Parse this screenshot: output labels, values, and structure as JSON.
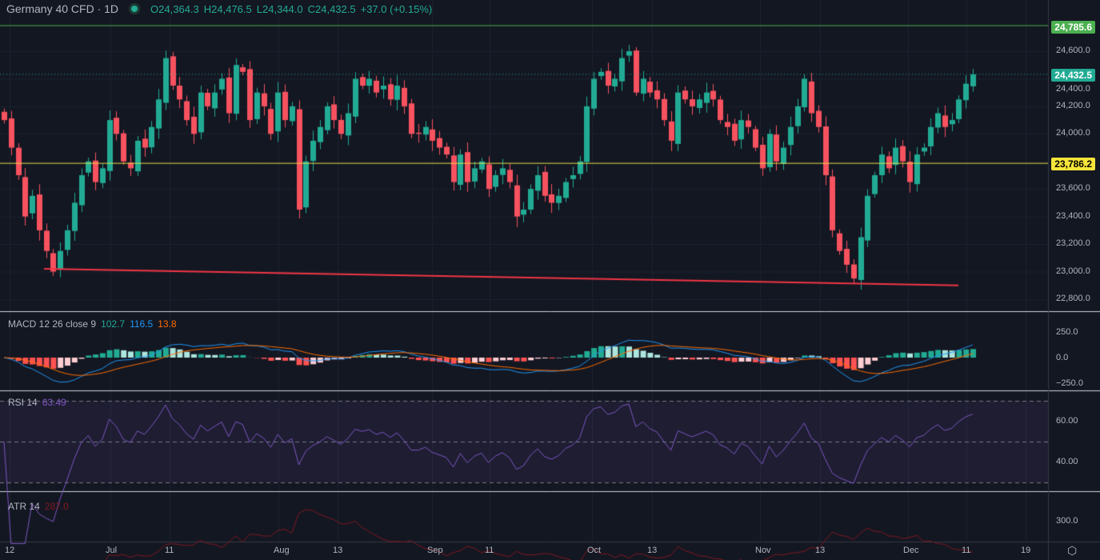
{
  "header": {
    "symbol": "Germany 40 CFD · 1D",
    "open": "O24,364.3",
    "high": "H24,476.5",
    "low": "L24,344.0",
    "close": "C24,432.5",
    "change": "+37.0 (+0.15%)"
  },
  "price_axis": [
    "24,600.0",
    "24,400.0",
    "24,200.0",
    "24,000.0",
    "23,600.0",
    "23,400.0",
    "23,200.0",
    "23,000.0",
    "22,800.0"
  ],
  "price_tags": {
    "resistance": "24,785.6",
    "last": "24,432.5",
    "support": "23,786.2"
  },
  "lines": {
    "resistance": 24785.6,
    "last": 24432.5,
    "support": 23786.2,
    "trend_start": 23020,
    "trend_end": 22900
  },
  "colors": {
    "up": "#22ab94",
    "down": "#f7525f",
    "resistance": "#4caf50",
    "support": "#e6e04a",
    "trend": "#f23645",
    "macd": "#2962ff",
    "signal": "#ff6d00",
    "rsi": "#7e57c2",
    "atr": "#801922"
  },
  "macd": {
    "label": "MACD 12 26 close 9",
    "hist": "102.7",
    "macd": "116.5",
    "signal": "13.8",
    "axis": [
      "250.0",
      "0.0",
      "−250.0"
    ]
  },
  "rsi": {
    "label": "RSI 14",
    "value": "63.49",
    "axis": [
      "60.00",
      "40.00"
    ]
  },
  "atr": {
    "label": "ATR 14",
    "value": "287.0",
    "axis": [
      "300.0"
    ]
  },
  "time_axis": [
    "12",
    "Jul",
    "11",
    "Aug",
    "13",
    "Sep",
    "11",
    "Oct",
    "13",
    "Nov",
    "13",
    "Dec",
    "11",
    "19"
  ],
  "closes": [
    24100,
    23900,
    23700,
    23400,
    23550,
    23300,
    23150,
    23000,
    23150,
    23300,
    23500,
    23700,
    23800,
    23650,
    23750,
    24100,
    24000,
    23800,
    23750,
    23950,
    23900,
    24050,
    24250,
    24550,
    24350,
    24250,
    24100,
    24000,
    24300,
    24200,
    24300,
    24400,
    24150,
    24500,
    24450,
    24100,
    24300,
    24200,
    24000,
    24300,
    24100,
    24200,
    23450,
    23800,
    23950,
    24050,
    24200,
    24100,
    24000,
    24150,
    24400,
    24350,
    24400,
    24300,
    24350,
    24250,
    24350,
    24200,
    24000,
    24000,
    24050,
    23950,
    23900,
    23850,
    23650,
    23850,
    23650,
    23750,
    23800,
    23600,
    23700,
    23750,
    23650,
    23400,
    23450,
    23600,
    23700,
    23550,
    23500,
    23550,
    23650,
    23700,
    23800,
    24200,
    24400,
    24450,
    24350,
    24400,
    24550,
    24600,
    24300,
    24400,
    24300,
    24250,
    24100,
    23950,
    24300,
    24250,
    24200,
    24250,
    24300,
    24250,
    24100,
    24050,
    23950,
    24100,
    24050,
    23900,
    23750,
    24000,
    23800,
    23900,
    24050,
    24200,
    24400,
    24150,
    24050,
    23700,
    23300,
    23150,
    23050,
    22950,
    23250,
    23550,
    23700,
    23850,
    23750,
    23900,
    23800,
    23650,
    23850,
    23900,
    24050,
    24150,
    24050,
    24100,
    24250,
    24364,
    24432.5
  ]
}
